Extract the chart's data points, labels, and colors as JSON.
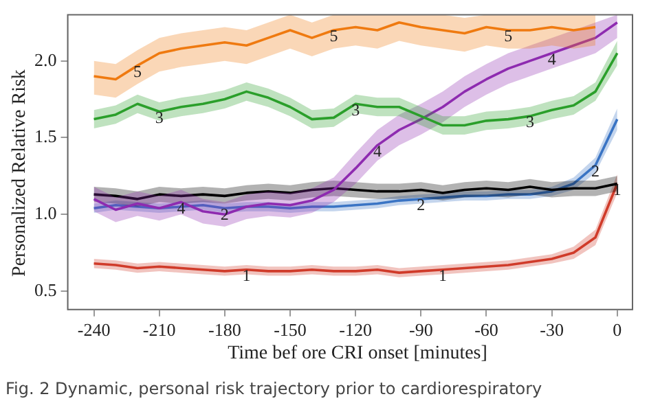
{
  "chart_data": {
    "type": "line",
    "xlabel": "Time bef ore CRI onset [minutes]",
    "ylabel": "Personalized Relative Risk",
    "annotations": [
      "Fig. 2 Dynamic, personal risk trajectory prior to cardiorespiratory"
    ],
    "x": [
      -240,
      -230,
      -220,
      -210,
      -200,
      -190,
      -180,
      -170,
      -160,
      -150,
      -140,
      -130,
      -120,
      -110,
      -100,
      -90,
      -80,
      -70,
      -60,
      -50,
      -40,
      -30,
      -20,
      -10,
      0
    ],
    "xlim": [
      -252,
      7
    ],
    "xticks": [
      -240,
      -210,
      -180,
      -150,
      -120,
      -90,
      -60,
      -30,
      0
    ],
    "ylim": [
      0.38,
      2.3
    ],
    "yticks": [
      {
        "value": 0.5,
        "label": "0.5"
      },
      {
        "value": 1,
        "label": "1.0"
      },
      {
        "value": 1.5,
        "label": "1.5"
      },
      {
        "value": 2,
        "label": "2.0"
      }
    ],
    "legend": false,
    "marker": "none",
    "line_style": "solid",
    "series": [
      {
        "name": "5",
        "color": "#f07a10",
        "values": [
          1.9,
          1.88,
          1.97,
          2.05,
          2.08,
          2.1,
          2.12,
          2.1,
          2.15,
          2.2,
          2.15,
          2.2,
          2.22,
          2.2,
          2.25,
          2.22,
          2.2,
          2.18,
          2.22,
          2.2,
          2.2,
          2.22,
          2.2,
          2.22,
          null
        ],
        "lower": [
          1.78,
          1.76,
          1.85,
          1.93,
          1.96,
          1.98,
          2.0,
          1.98,
          2.03,
          2.08,
          2.03,
          2.08,
          2.1,
          2.08,
          2.13,
          2.1,
          2.08,
          2.06,
          2.1,
          2.08,
          2.08,
          2.1,
          2.08,
          2.1,
          null
        ],
        "upper": [
          2.0,
          1.98,
          2.07,
          2.15,
          2.18,
          2.2,
          2.22,
          2.2,
          2.25,
          2.3,
          2.25,
          2.3,
          2.3,
          2.3,
          2.3,
          2.3,
          2.3,
          2.28,
          2.3,
          2.3,
          2.3,
          2.3,
          2.3,
          2.3,
          null
        ]
      },
      {
        "name": "3",
        "color": "#2ca02c",
        "values": [
          1.62,
          1.65,
          1.72,
          1.67,
          1.7,
          1.72,
          1.75,
          1.8,
          1.76,
          1.7,
          1.62,
          1.63,
          1.72,
          1.7,
          1.7,
          1.64,
          1.58,
          1.58,
          1.61,
          1.62,
          1.64,
          1.68,
          1.71,
          1.8,
          2.05
        ],
        "lower": [
          1.56,
          1.59,
          1.66,
          1.61,
          1.64,
          1.66,
          1.69,
          1.74,
          1.7,
          1.64,
          1.56,
          1.57,
          1.66,
          1.64,
          1.64,
          1.58,
          1.52,
          1.52,
          1.55,
          1.56,
          1.58,
          1.62,
          1.65,
          1.74,
          1.97
        ],
        "upper": [
          1.68,
          1.71,
          1.78,
          1.73,
          1.76,
          1.78,
          1.81,
          1.86,
          1.82,
          1.76,
          1.68,
          1.69,
          1.78,
          1.76,
          1.76,
          1.7,
          1.64,
          1.64,
          1.67,
          1.68,
          1.7,
          1.74,
          1.77,
          1.86,
          2.13
        ]
      },
      {
        "name": "4",
        "color": "#8e2bb0",
        "values": [
          1.1,
          1.03,
          1.07,
          1.04,
          1.08,
          1.02,
          1.0,
          1.05,
          1.07,
          1.06,
          1.09,
          1.16,
          1.3,
          1.45,
          1.55,
          1.62,
          1.7,
          1.8,
          1.88,
          1.95,
          2.0,
          2.05,
          2.1,
          2.15,
          2.25
        ],
        "lower": [
          1.02,
          0.95,
          0.99,
          0.96,
          1.0,
          0.94,
          0.92,
          0.97,
          0.99,
          0.98,
          1.01,
          1.08,
          1.2,
          1.35,
          1.45,
          1.52,
          1.6,
          1.7,
          1.78,
          1.85,
          1.9,
          1.95,
          2.0,
          2.05,
          2.15
        ],
        "upper": [
          1.18,
          1.11,
          1.15,
          1.12,
          1.16,
          1.1,
          1.08,
          1.13,
          1.15,
          1.14,
          1.17,
          1.24,
          1.4,
          1.55,
          1.65,
          1.72,
          1.8,
          1.9,
          1.98,
          2.05,
          2.1,
          2.15,
          2.2,
          2.25,
          2.3
        ]
      },
      {
        "color": "#000000",
        "values": [
          1.13,
          1.12,
          1.1,
          1.13,
          1.12,
          1.13,
          1.12,
          1.14,
          1.15,
          1.14,
          1.16,
          1.17,
          1.16,
          1.15,
          1.15,
          1.16,
          1.14,
          1.16,
          1.17,
          1.16,
          1.18,
          1.16,
          1.17,
          1.17,
          1.2
        ],
        "lower": [
          1.08,
          1.07,
          1.05,
          1.08,
          1.07,
          1.08,
          1.07,
          1.09,
          1.1,
          1.09,
          1.11,
          1.12,
          1.11,
          1.1,
          1.1,
          1.11,
          1.09,
          1.11,
          1.12,
          1.11,
          1.13,
          1.11,
          1.12,
          1.12,
          1.15
        ],
        "upper": [
          1.18,
          1.17,
          1.15,
          1.18,
          1.17,
          1.18,
          1.17,
          1.19,
          1.2,
          1.19,
          1.21,
          1.22,
          1.21,
          1.2,
          1.2,
          1.21,
          1.19,
          1.21,
          1.22,
          1.21,
          1.23,
          1.21,
          1.22,
          1.22,
          1.25
        ]
      },
      {
        "name": "2",
        "color": "#3a75c4",
        "values": [
          1.04,
          1.06,
          1.05,
          1.04,
          1.05,
          1.06,
          1.04,
          1.05,
          1.05,
          1.04,
          1.05,
          1.05,
          1.06,
          1.07,
          1.09,
          1.1,
          1.11,
          1.12,
          1.12,
          1.13,
          1.13,
          1.15,
          1.2,
          1.32,
          1.62
        ],
        "lower": [
          1.01,
          1.03,
          1.02,
          1.01,
          1.02,
          1.03,
          1.01,
          1.02,
          1.02,
          1.01,
          1.02,
          1.02,
          1.03,
          1.04,
          1.06,
          1.07,
          1.08,
          1.09,
          1.09,
          1.1,
          1.1,
          1.12,
          1.16,
          1.27,
          1.55
        ],
        "upper": [
          1.07,
          1.09,
          1.08,
          1.07,
          1.08,
          1.09,
          1.07,
          1.08,
          1.08,
          1.07,
          1.08,
          1.08,
          1.09,
          1.1,
          1.12,
          1.13,
          1.14,
          1.15,
          1.15,
          1.16,
          1.16,
          1.18,
          1.24,
          1.37,
          1.69
        ]
      },
      {
        "name": "1",
        "color": "#d03c2a",
        "values": [
          0.68,
          0.67,
          0.65,
          0.66,
          0.65,
          0.64,
          0.63,
          0.64,
          0.63,
          0.63,
          0.64,
          0.63,
          0.63,
          0.64,
          0.62,
          0.63,
          0.64,
          0.65,
          0.66,
          0.67,
          0.69,
          0.71,
          0.75,
          0.85,
          1.2
        ],
        "lower": [
          0.65,
          0.64,
          0.62,
          0.63,
          0.62,
          0.61,
          0.6,
          0.61,
          0.6,
          0.6,
          0.61,
          0.6,
          0.6,
          0.61,
          0.59,
          0.6,
          0.61,
          0.62,
          0.63,
          0.64,
          0.66,
          0.68,
          0.71,
          0.8,
          1.14
        ],
        "upper": [
          0.71,
          0.7,
          0.68,
          0.69,
          0.68,
          0.67,
          0.66,
          0.67,
          0.66,
          0.66,
          0.67,
          0.66,
          0.66,
          0.67,
          0.65,
          0.66,
          0.67,
          0.68,
          0.69,
          0.7,
          0.72,
          0.74,
          0.79,
          0.9,
          1.26
        ]
      }
    ]
  }
}
